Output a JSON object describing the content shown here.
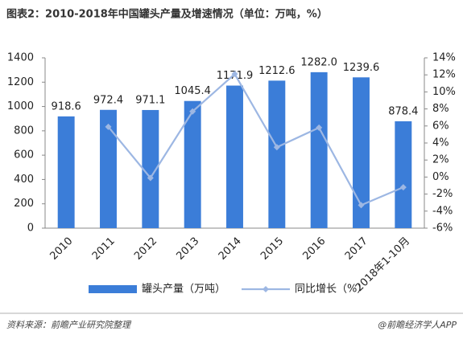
{
  "title": "图表2：2010-2018年中国罐头产量及增速情况（单位：万吨，%）",
  "source": "资料来源：前瞻产业研究院整理",
  "credit": "@前瞻经济学人APP",
  "chart_data": {
    "type": "bar",
    "categories": [
      "2010",
      "2011",
      "2012",
      "2013",
      "2014",
      "2015",
      "2016",
      "2017",
      "2018年1-10月"
    ],
    "series": [
      {
        "name": "罐头产量（万吨）",
        "type": "bar",
        "color": "#3b7dd8",
        "values": [
          918.6,
          972.4,
          971.1,
          1045.4,
          1171.9,
          1212.6,
          1282.0,
          1239.6,
          878.4
        ],
        "value_labels": [
          "918.6",
          "972.4",
          "971.1",
          "1045.4",
          "1171.9",
          "1212.6",
          "1282.0",
          "1239.6",
          "878.4"
        ]
      },
      {
        "name": "同比增长（%）",
        "type": "line",
        "axis": "y2",
        "color": "#9db7e3",
        "values": [
          null,
          5.9,
          -0.1,
          7.7,
          12.1,
          3.5,
          5.8,
          -3.3,
          -1.2
        ]
      }
    ],
    "ylim": [
      0,
      1400
    ],
    "yticks": [
      0,
      200,
      400,
      600,
      800,
      1000,
      1200,
      1400
    ],
    "y2lim": [
      -6,
      14
    ],
    "y2ticks": [
      {
        "value": -6,
        "label": "-6%"
      },
      {
        "value": -4,
        "label": "-4%"
      },
      {
        "value": -2,
        "label": "-2%"
      },
      {
        "value": 0,
        "label": "0%"
      },
      {
        "value": 2,
        "label": "2%"
      },
      {
        "value": 4,
        "label": "4%"
      },
      {
        "value": 6,
        "label": "6%"
      },
      {
        "value": 8,
        "label": "8%"
      },
      {
        "value": 10,
        "label": "10%"
      },
      {
        "value": 12,
        "label": "12%"
      },
      {
        "value": 14,
        "label": "14%"
      }
    ],
    "grid": false,
    "legend": "bottom"
  }
}
